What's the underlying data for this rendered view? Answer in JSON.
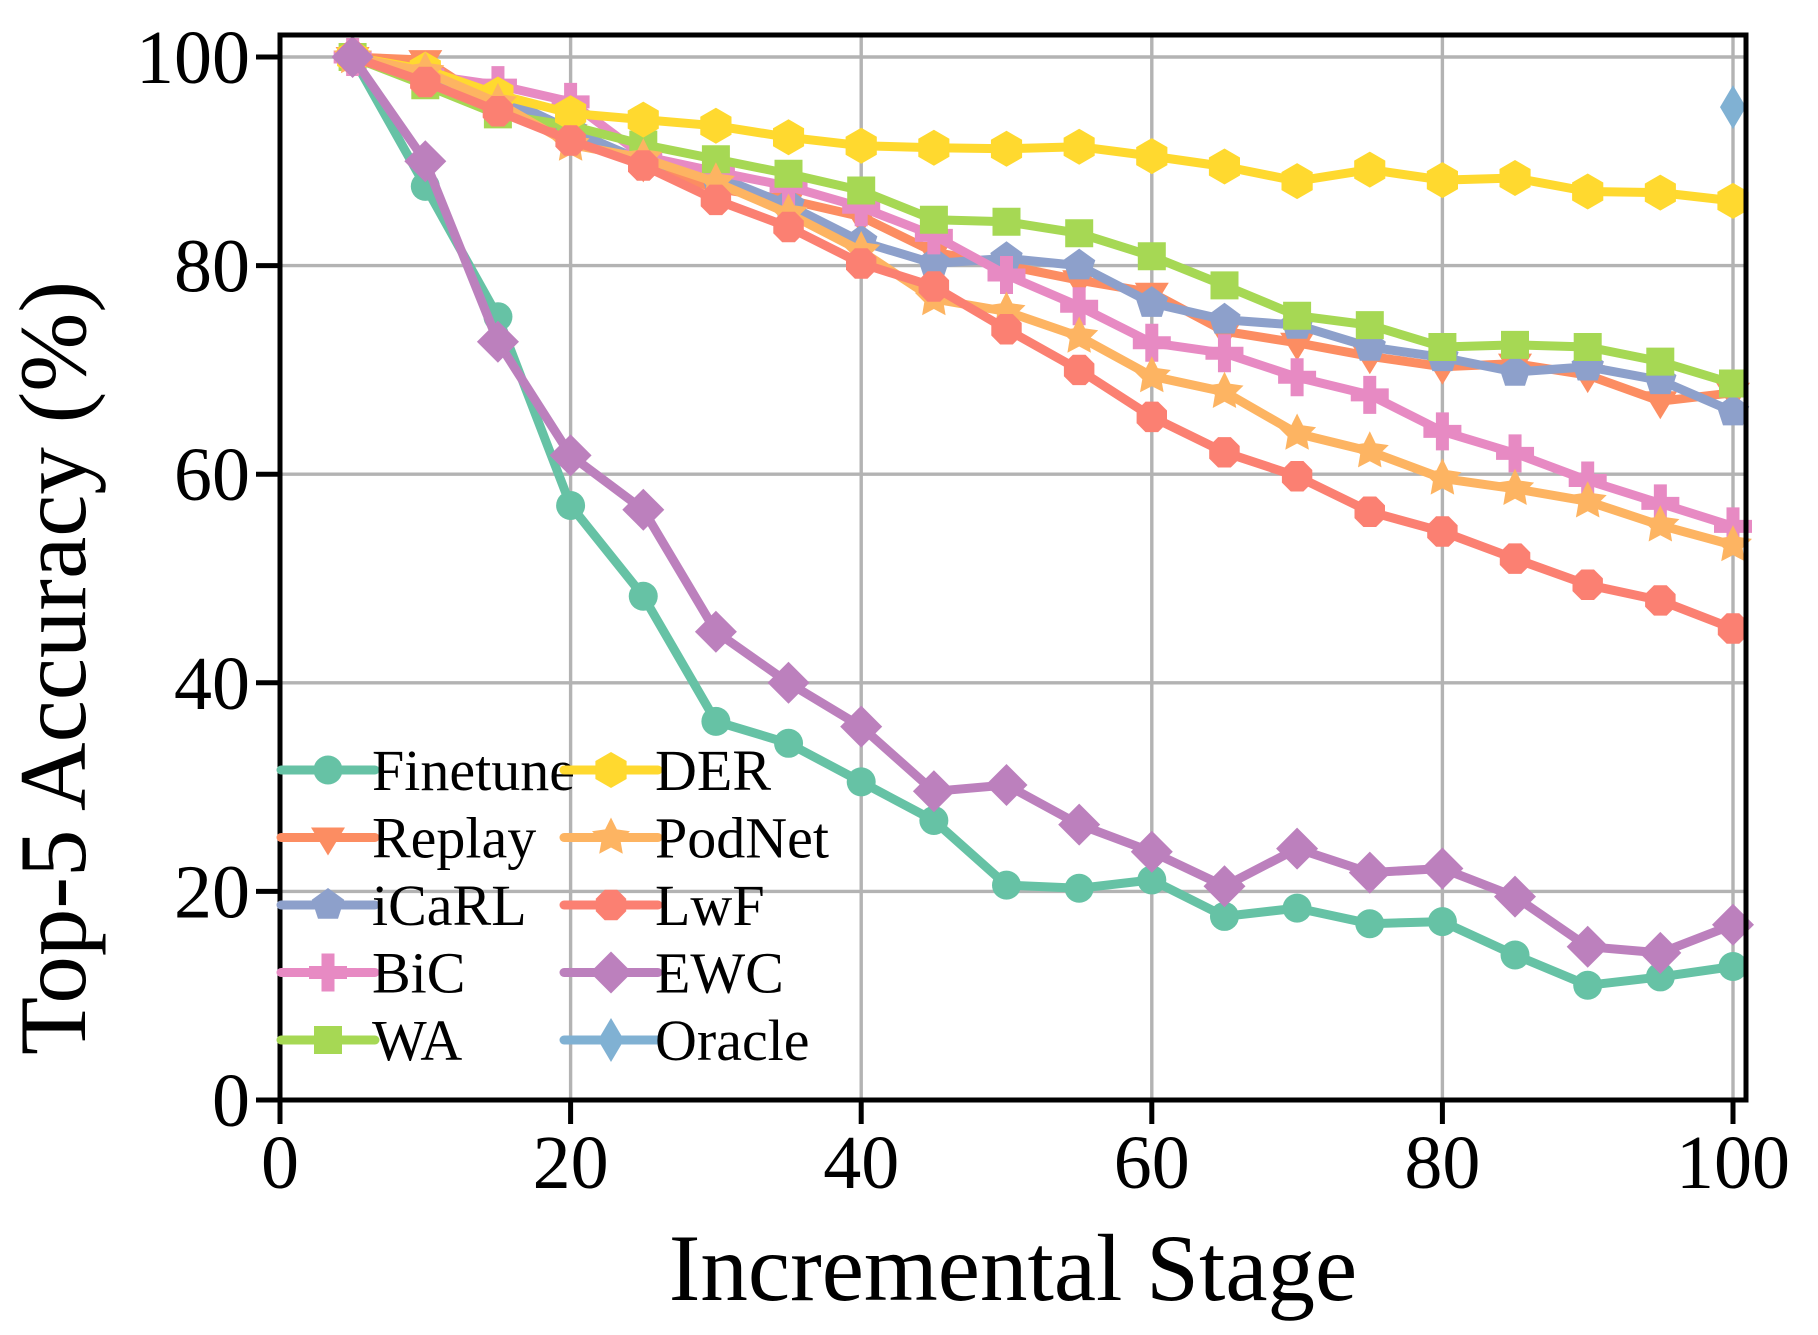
{
  "chart_data": {
    "type": "line",
    "title": "",
    "xlabel": "Incremental Stage",
    "ylabel": "Top-5 Accuracy (%)",
    "xlim": [
      0,
      101
    ],
    "ylim": [
      0,
      102
    ],
    "xticks": [
      0,
      20,
      40,
      60,
      80,
      100
    ],
    "yticks": [
      0,
      20,
      40,
      60,
      80,
      100
    ],
    "grid": true,
    "grid_color": "#b3b3b3",
    "legend_position": "lower-left, two columns, no frame",
    "x": [
      5,
      10,
      15,
      20,
      25,
      30,
      35,
      40,
      45,
      50,
      55,
      60,
      65,
      70,
      75,
      80,
      85,
      90,
      95,
      100
    ],
    "series": [
      {
        "name": "Finetune",
        "color": "#66c2a5",
        "marker": "circle",
        "y": [
          100.0,
          87.6,
          75.1,
          57.0,
          48.3,
          36.3,
          34.2,
          30.5,
          26.8,
          20.6,
          20.3,
          21.1,
          17.6,
          18.4,
          16.9,
          17.1,
          13.9,
          11.0,
          11.8,
          12.8
        ]
      },
      {
        "name": "Replay",
        "color": "#fc8d62",
        "marker": "triangle_down",
        "y": [
          100.0,
          99.7,
          95.2,
          92.6,
          89.7,
          87.4,
          86.3,
          84.7,
          81.3,
          80.0,
          78.6,
          77.4,
          73.7,
          72.6,
          71.3,
          70.3,
          70.6,
          69.5,
          67.0,
          67.8
        ]
      },
      {
        "name": "iCaRL",
        "color": "#8da0cb",
        "marker": "pentagon",
        "y": [
          100.0,
          98.2,
          96.3,
          93.0,
          90.0,
          88.6,
          85.8,
          82.3,
          80.2,
          80.7,
          80.0,
          76.4,
          74.8,
          74.3,
          72.2,
          71.2,
          69.8,
          70.3,
          69.0,
          66.0
        ]
      },
      {
        "name": "BiC",
        "color": "#e78ac3",
        "marker": "plus",
        "y": [
          100.0,
          98.3,
          97.3,
          95.7,
          90.5,
          89.0,
          87.6,
          85.6,
          82.9,
          79.1,
          76.1,
          72.6,
          71.6,
          69.3,
          67.6,
          64.1,
          62.0,
          59.4,
          57.2,
          55.0
        ]
      },
      {
        "name": "WA",
        "color": "#a6d854",
        "marker": "square",
        "y": [
          100.0,
          97.3,
          94.5,
          93.4,
          91.6,
          90.2,
          88.8,
          87.2,
          84.4,
          84.2,
          83.1,
          80.9,
          78.1,
          75.2,
          74.3,
          72.2,
          72.4,
          72.2,
          70.8,
          68.7
        ]
      },
      {
        "name": "DER",
        "color": "#ffd92f",
        "marker": "hexagon",
        "y": [
          100.0,
          98.8,
          96.4,
          94.6,
          94.0,
          93.4,
          92.3,
          91.5,
          91.3,
          91.2,
          91.4,
          90.5,
          89.5,
          88.1,
          89.2,
          88.2,
          88.4,
          87.1,
          87.0,
          86.2
        ]
      },
      {
        "name": "PodNet",
        "color": "#fdb462",
        "marker": "star",
        "y": [
          100.0,
          98.6,
          95.6,
          91.6,
          90.3,
          88.0,
          85.0,
          81.4,
          76.8,
          75.6,
          73.2,
          69.4,
          67.9,
          63.9,
          62.2,
          59.6,
          58.6,
          57.4,
          55.1,
          53.2
        ]
      },
      {
        "name": "LwF",
        "color": "#fb8072",
        "marker": "octagon",
        "y": [
          100.0,
          97.6,
          94.8,
          92.0,
          89.6,
          86.3,
          83.7,
          80.2,
          78.0,
          73.9,
          70.0,
          65.5,
          62.1,
          59.8,
          56.4,
          54.5,
          51.9,
          49.4,
          47.9,
          45.2
        ]
      },
      {
        "name": "EWC",
        "color": "#bc80bd",
        "marker": "diamond",
        "y": [
          100.0,
          90.0,
          72.7,
          61.8,
          56.6,
          44.9,
          40.0,
          35.8,
          29.6,
          30.2,
          26.4,
          23.8,
          20.5,
          24.1,
          21.8,
          22.2,
          19.5,
          14.7,
          14.1,
          16.8
        ]
      },
      {
        "name": "Oracle",
        "color": "#80b1d3",
        "marker": "thin_diamond",
        "x_points": [
          100
        ],
        "y": [
          95.2
        ]
      }
    ],
    "legend_columns": [
      [
        "Finetune",
        "Replay",
        "iCaRL",
        "BiC",
        "WA"
      ],
      [
        "DER",
        "PodNet",
        "LwF",
        "EWC",
        "Oracle"
      ]
    ]
  }
}
